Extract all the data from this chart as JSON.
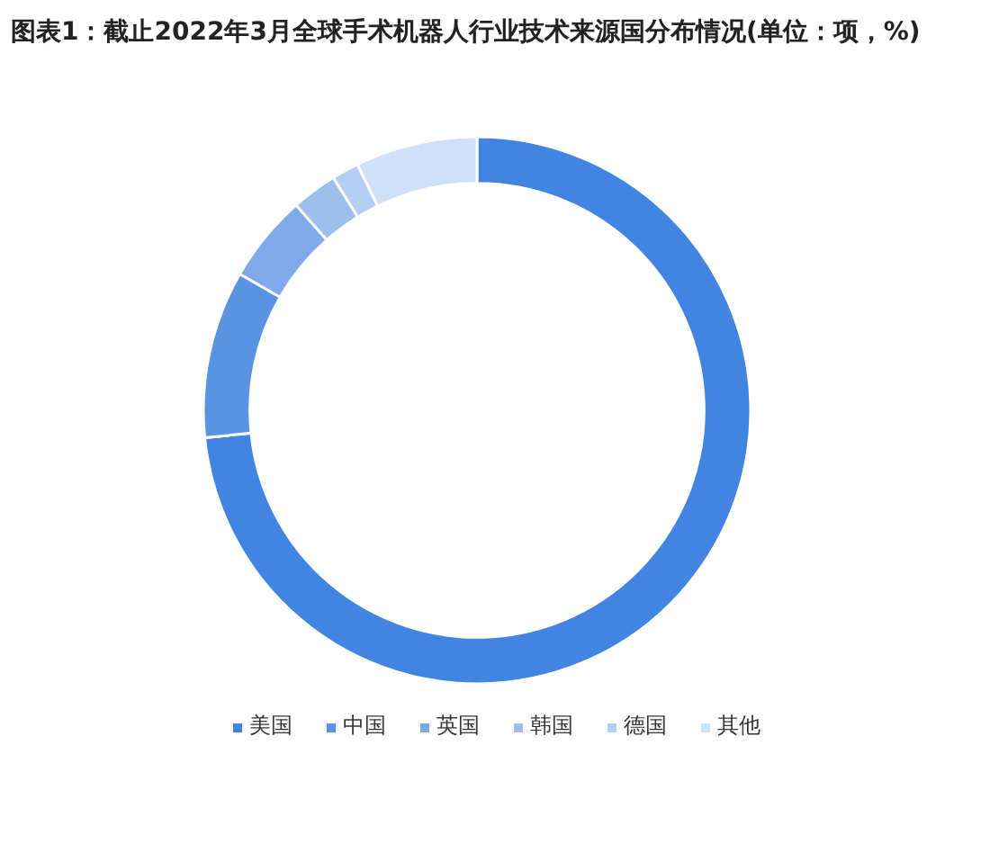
{
  "chart_data": {
    "type": "donut",
    "title": "图表1：截止2022年3月全球手术机器人行业技术来源国分布情况(单位：项，%)",
    "categories": [
      "美国",
      "中国",
      "英国",
      "韩国",
      "德国",
      "其他"
    ],
    "values": [
      73.4,
      9.9,
      5.2,
      2.7,
      1.6,
      7.2
    ],
    "colors": [
      "#4284e2",
      "#5b93e3",
      "#7faae9",
      "#9cbfee",
      "#b4cff3",
      "#cfe1f8"
    ],
    "legend": "bottom"
  }
}
